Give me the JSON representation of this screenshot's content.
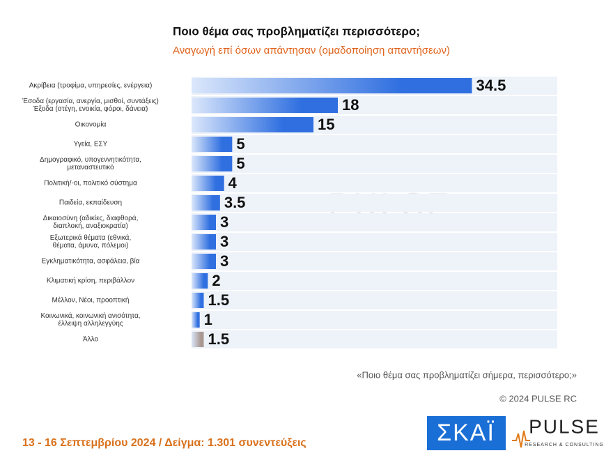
{
  "chart_data": {
    "type": "hbar",
    "title": "Ποιο θέμα σας προβληματίζει περισσότερο;",
    "subtitle": "Αναγωγή επί όσων απάντησαν   (ομαδοποίηση απαντήσεων)",
    "categories": [
      "Ακρίβεια (τροφίμα, υπηρεσίες, ενέργεια)",
      "Έσοδα (εργασία, ανεργία, μισθοί, συντάξεις)\nΈξοδα (στέγη, ενοικία, φόροι, δάνεια)",
      "Οικονομία",
      "Υγεία, ΕΣΥ",
      "Δημογραφικό, υπογεννητικότητα,\nμεταναστευτικό",
      "Πολιτική/-οι, πολιτικό σύστημα",
      "Παιδεία, εκπαίδευση",
      "Δικαιοσύνη (αδικίες, διαφθορά,\nδιαπλοκή, αναξιοκρατία)",
      "Εξωτερικά θέματα (εθνικά,\nθέματα, άμυνα, πόλεμοι)",
      "Εγκληματικότητα, ασφάλεια, βία",
      "Κλιματική κρίση, περιβάλλον",
      "Μέλλον, Νέοι, προοπτική",
      "Κοινωνικά, κοινωνική ανισότητα,\nέλλειψη αλληλεγγύης",
      "Άλλο"
    ],
    "values": [
      34.5,
      18,
      15,
      5,
      5,
      4,
      3.5,
      3,
      3,
      3,
      2,
      1.5,
      1,
      1.5
    ],
    "colors": [
      "#2f6fe0",
      "#2f6fe0",
      "#2f6fe0",
      "#2f6fe0",
      "#2f6fe0",
      "#2f6fe0",
      "#2f6fe0",
      "#2f6fe0",
      "#2f6fe0",
      "#2f6fe0",
      "#2f6fe0",
      "#2f6fe0",
      "#2f6fe0",
      "#a89890"
    ],
    "xlim": [
      0,
      45
    ],
    "note": "«Ποιο θέμα σας προβληματίζει σήμερα, περισσότερο;»",
    "copyright": "© 2024 PULSE RC",
    "footer": "13 - 16 Σεπτεμβρίου 2024  /  Δείγμα:  1.301 συνεντεύξεις",
    "logos": {
      "skai": "ΣΚΑΪ",
      "pulse": "PULSE",
      "pulse_sub": "RESEARCH & CONSULTING"
    }
  }
}
